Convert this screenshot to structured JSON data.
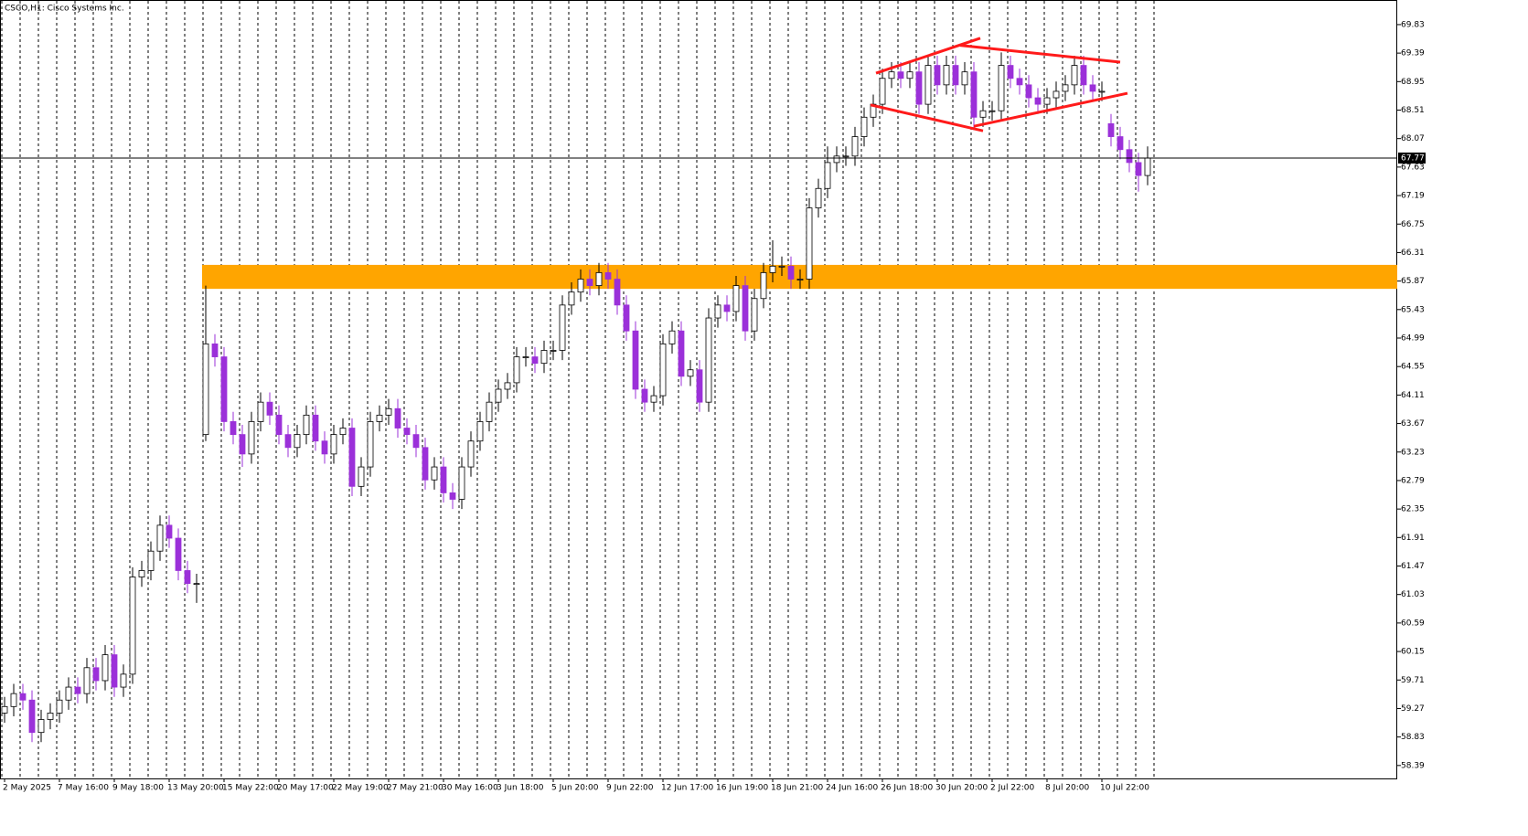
{
  "chart_data": {
    "type": "candlestick",
    "title": "CSCO,H1:  Cisco Systems Inc.",
    "categories": [
      "2 May 2025",
      null,
      null,
      null,
      null,
      null,
      "7 May 16:00",
      null,
      null,
      null,
      null,
      null,
      "9 May 18:00",
      null,
      null,
      null,
      null,
      null,
      "13 May 20:00",
      null,
      null,
      null,
      null,
      null,
      "15 May 22:00",
      null,
      null,
      null,
      null,
      null,
      "20 May 17:00",
      null,
      null,
      null,
      null,
      null,
      "22 May 19:00",
      null,
      null,
      null,
      null,
      null,
      "27 May 21:00",
      null,
      null,
      null,
      null,
      null,
      "30 May 16:00",
      null,
      null,
      null,
      null,
      null,
      "3 Jun 18:00",
      null,
      null,
      null,
      null,
      null,
      "5 Jun 20:00",
      null,
      null,
      null,
      null,
      null,
      "9 Jun 22:00",
      null,
      null,
      null,
      null,
      null,
      "12 Jun 17:00",
      null,
      null,
      null,
      null,
      null,
      "16 Jun 19:00",
      null,
      null,
      null,
      null,
      null,
      "18 Jun 21:00",
      null,
      null,
      null,
      null,
      null,
      "24 Jun 16:00",
      null,
      null,
      null,
      null,
      null,
      "26 Jun 18:00",
      null,
      null,
      null,
      null,
      null,
      "30 Jun 20:00",
      null,
      null,
      null,
      null,
      null,
      "2 Jul 22:00",
      null,
      null,
      null,
      null,
      null,
      "8 Jul 20:00",
      null,
      null,
      null,
      null,
      null,
      "10 Jul 22:00",
      null,
      null,
      null,
      null,
      null
    ],
    "open": [
      59.2,
      59.3,
      59.5,
      59.4,
      58.9,
      59.1,
      59.2,
      59.4,
      59.6,
      59.5,
      59.9,
      59.7,
      60.1,
      59.6,
      59.8,
      61.3,
      61.4,
      61.7,
      62.1,
      61.9,
      61.4,
      61.2,
      63.5,
      64.9,
      64.7,
      63.7,
      63.5,
      63.2,
      63.7,
      64.0,
      63.8,
      63.5,
      63.3,
      63.5,
      63.8,
      63.4,
      63.2,
      63.5,
      63.6,
      62.7,
      63.0,
      63.7,
      63.8,
      63.9,
      63.6,
      63.5,
      63.3,
      62.8,
      63.0,
      62.6,
      62.5,
      63.0,
      63.4,
      63.7,
      64.0,
      64.2,
      64.3,
      64.7,
      64.7,
      64.6,
      64.8,
      64.8,
      65.5,
      65.7,
      65.9,
      65.8,
      66.0,
      65.9,
      65.5,
      65.1,
      64.2,
      64.0,
      64.1,
      64.9,
      65.1,
      64.4,
      64.5,
      64.0,
      65.3,
      65.5,
      65.4,
      65.8,
      65.1,
      65.6,
      66.0,
      66.1,
      66.1,
      65.9,
      65.9,
      67.0,
      67.3,
      67.7,
      67.8,
      67.8,
      68.1,
      68.4,
      68.6,
      69.0,
      69.1,
      69.0,
      69.1,
      68.6,
      69.2,
      68.9,
      69.2,
      68.9,
      69.1,
      68.4,
      68.5,
      68.5,
      69.2,
      69.0,
      68.9,
      68.7,
      68.6,
      68.7,
      68.8,
      68.9,
      69.2,
      68.9,
      68.8,
      68.3,
      68.1,
      67.9,
      67.7,
      67.5
    ],
    "high": [
      59.45,
      59.65,
      59.65,
      59.55,
      59.25,
      59.35,
      59.55,
      59.75,
      59.75,
      60.05,
      60.05,
      60.25,
      60.25,
      59.95,
      61.45,
      61.55,
      61.85,
      62.25,
      62.25,
      62.05,
      61.55,
      61.35,
      65.8,
      65.05,
      64.85,
      63.85,
      63.65,
      63.85,
      64.15,
      64.15,
      63.95,
      63.65,
      63.65,
      63.95,
      63.95,
      63.55,
      63.65,
      63.75,
      63.75,
      63.15,
      63.85,
      63.95,
      64.05,
      64.05,
      63.75,
      63.65,
      63.45,
      63.15,
      63.15,
      62.75,
      63.15,
      63.55,
      63.85,
      64.15,
      64.35,
      64.45,
      64.85,
      64.85,
      64.85,
      64.95,
      64.95,
      65.65,
      65.85,
      66.05,
      66.05,
      66.15,
      66.15,
      66.05,
      65.65,
      65.25,
      64.35,
      64.25,
      65.05,
      65.25,
      65.25,
      64.65,
      64.65,
      65.45,
      65.65,
      65.65,
      65.95,
      65.95,
      65.75,
      66.15,
      66.5,
      66.25,
      66.25,
      66.05,
      67.15,
      67.45,
      67.95,
      67.95,
      67.95,
      68.25,
      68.55,
      68.75,
      69.15,
      69.25,
      69.25,
      69.25,
      69.25,
      69.35,
      69.35,
      69.35,
      69.35,
      69.25,
      69.25,
      68.65,
      68.65,
      69.4,
      69.35,
      69.15,
      69.05,
      68.85,
      68.85,
      68.95,
      69.05,
      69.35,
      69.35,
      69.05,
      68.95,
      68.45,
      68.25,
      68.05,
      67.85,
      67.95
    ],
    "low": [
      59.05,
      59.15,
      59.25,
      58.75,
      58.75,
      58.95,
      59.05,
      59.25,
      59.35,
      59.35,
      59.55,
      59.55,
      59.45,
      59.45,
      59.65,
      61.15,
      61.25,
      61.55,
      61.75,
      61.25,
      61.05,
      60.9,
      63.4,
      64.55,
      63.55,
      63.35,
      63.0,
      63.05,
      63.55,
      63.65,
      63.35,
      63.15,
      63.15,
      63.35,
      63.25,
      63.05,
      63.05,
      63.35,
      62.55,
      62.55,
      62.85,
      63.55,
      63.65,
      63.45,
      63.35,
      63.15,
      62.65,
      62.65,
      62.45,
      62.35,
      62.35,
      62.85,
      63.25,
      63.55,
      63.85,
      64.05,
      64.15,
      64.55,
      64.45,
      64.45,
      64.65,
      64.65,
      65.35,
      65.55,
      65.65,
      65.65,
      65.75,
      65.35,
      64.95,
      64.05,
      63.85,
      63.85,
      63.95,
      64.75,
      64.25,
      64.25,
      63.85,
      63.85,
      65.15,
      65.25,
      65.25,
      64.95,
      64.95,
      65.45,
      65.85,
      65.95,
      65.75,
      65.75,
      65.75,
      66.85,
      67.15,
      67.55,
      67.65,
      67.65,
      67.95,
      68.25,
      68.45,
      68.85,
      68.85,
      68.85,
      68.45,
      68.45,
      68.75,
      68.75,
      68.75,
      68.75,
      68.2,
      68.25,
      68.35,
      68.35,
      68.85,
      68.75,
      68.55,
      68.45,
      68.45,
      68.55,
      68.65,
      68.75,
      68.75,
      68.65,
      68.65,
      67.95,
      67.75,
      67.55,
      67.25,
      67.35
    ],
    "close": [
      59.3,
      59.5,
      59.4,
      58.9,
      59.1,
      59.2,
      59.4,
      59.6,
      59.5,
      59.9,
      59.7,
      60.1,
      59.6,
      59.8,
      61.3,
      61.4,
      61.7,
      62.1,
      61.9,
      61.4,
      61.2,
      61.2,
      64.9,
      64.7,
      63.7,
      63.5,
      63.2,
      63.7,
      64.0,
      63.8,
      63.5,
      63.3,
      63.5,
      63.8,
      63.4,
      63.2,
      63.5,
      63.6,
      62.7,
      63.0,
      63.7,
      63.8,
      63.9,
      63.6,
      63.5,
      63.3,
      62.8,
      63.0,
      62.6,
      62.5,
      63.0,
      63.4,
      63.7,
      64.0,
      64.2,
      64.3,
      64.7,
      64.7,
      64.6,
      64.8,
      64.8,
      65.5,
      65.7,
      65.9,
      65.8,
      66.0,
      65.9,
      65.5,
      65.1,
      64.2,
      64.0,
      64.1,
      64.9,
      65.1,
      64.4,
      64.5,
      64.0,
      65.3,
      65.5,
      65.4,
      65.8,
      65.1,
      65.6,
      66.0,
      66.1,
      66.1,
      65.9,
      65.9,
      67.0,
      67.3,
      67.7,
      67.8,
      67.8,
      68.1,
      68.4,
      68.6,
      69.0,
      69.1,
      69.0,
      69.1,
      68.6,
      69.2,
      68.9,
      69.2,
      68.9,
      69.1,
      68.4,
      68.5,
      68.5,
      69.2,
      69.0,
      68.9,
      68.7,
      68.6,
      68.7,
      68.8,
      68.9,
      69.2,
      68.9,
      68.8,
      68.8,
      68.1,
      67.9,
      67.7,
      67.5,
      67.77
    ],
    "up_color": "#ffffff",
    "down_color": "#9b30d9",
    "ylim": [
      58.19,
      70.21
    ],
    "yticks": [
      58.39,
      58.83,
      59.27,
      59.71,
      60.15,
      60.59,
      61.03,
      61.47,
      61.91,
      62.35,
      62.79,
      63.23,
      63.67,
      64.11,
      64.55,
      64.99,
      65.43,
      65.87,
      66.31,
      66.75,
      67.19,
      67.63,
      68.07,
      68.51,
      68.95,
      69.39,
      69.83
    ],
    "current_price": 67.77,
    "zone": {
      "start": 21.6,
      "from": 65.75,
      "to": 66.12,
      "color": "#ffa500"
    },
    "trendlines": [
      {
        "x": [
          95.3,
          106.7
        ],
        "y": [
          69.08,
          69.62
        ]
      },
      {
        "x": [
          104.5,
          122
        ],
        "y": [
          69.51,
          69.25
        ]
      },
      {
        "x": [
          94.7,
          107
        ],
        "y": [
          68.59,
          68.19
        ]
      },
      {
        "x": [
          106,
          122.8
        ],
        "y": [
          68.26,
          68.77
        ]
      }
    ],
    "trendline_color": "#ff1a1a"
  }
}
